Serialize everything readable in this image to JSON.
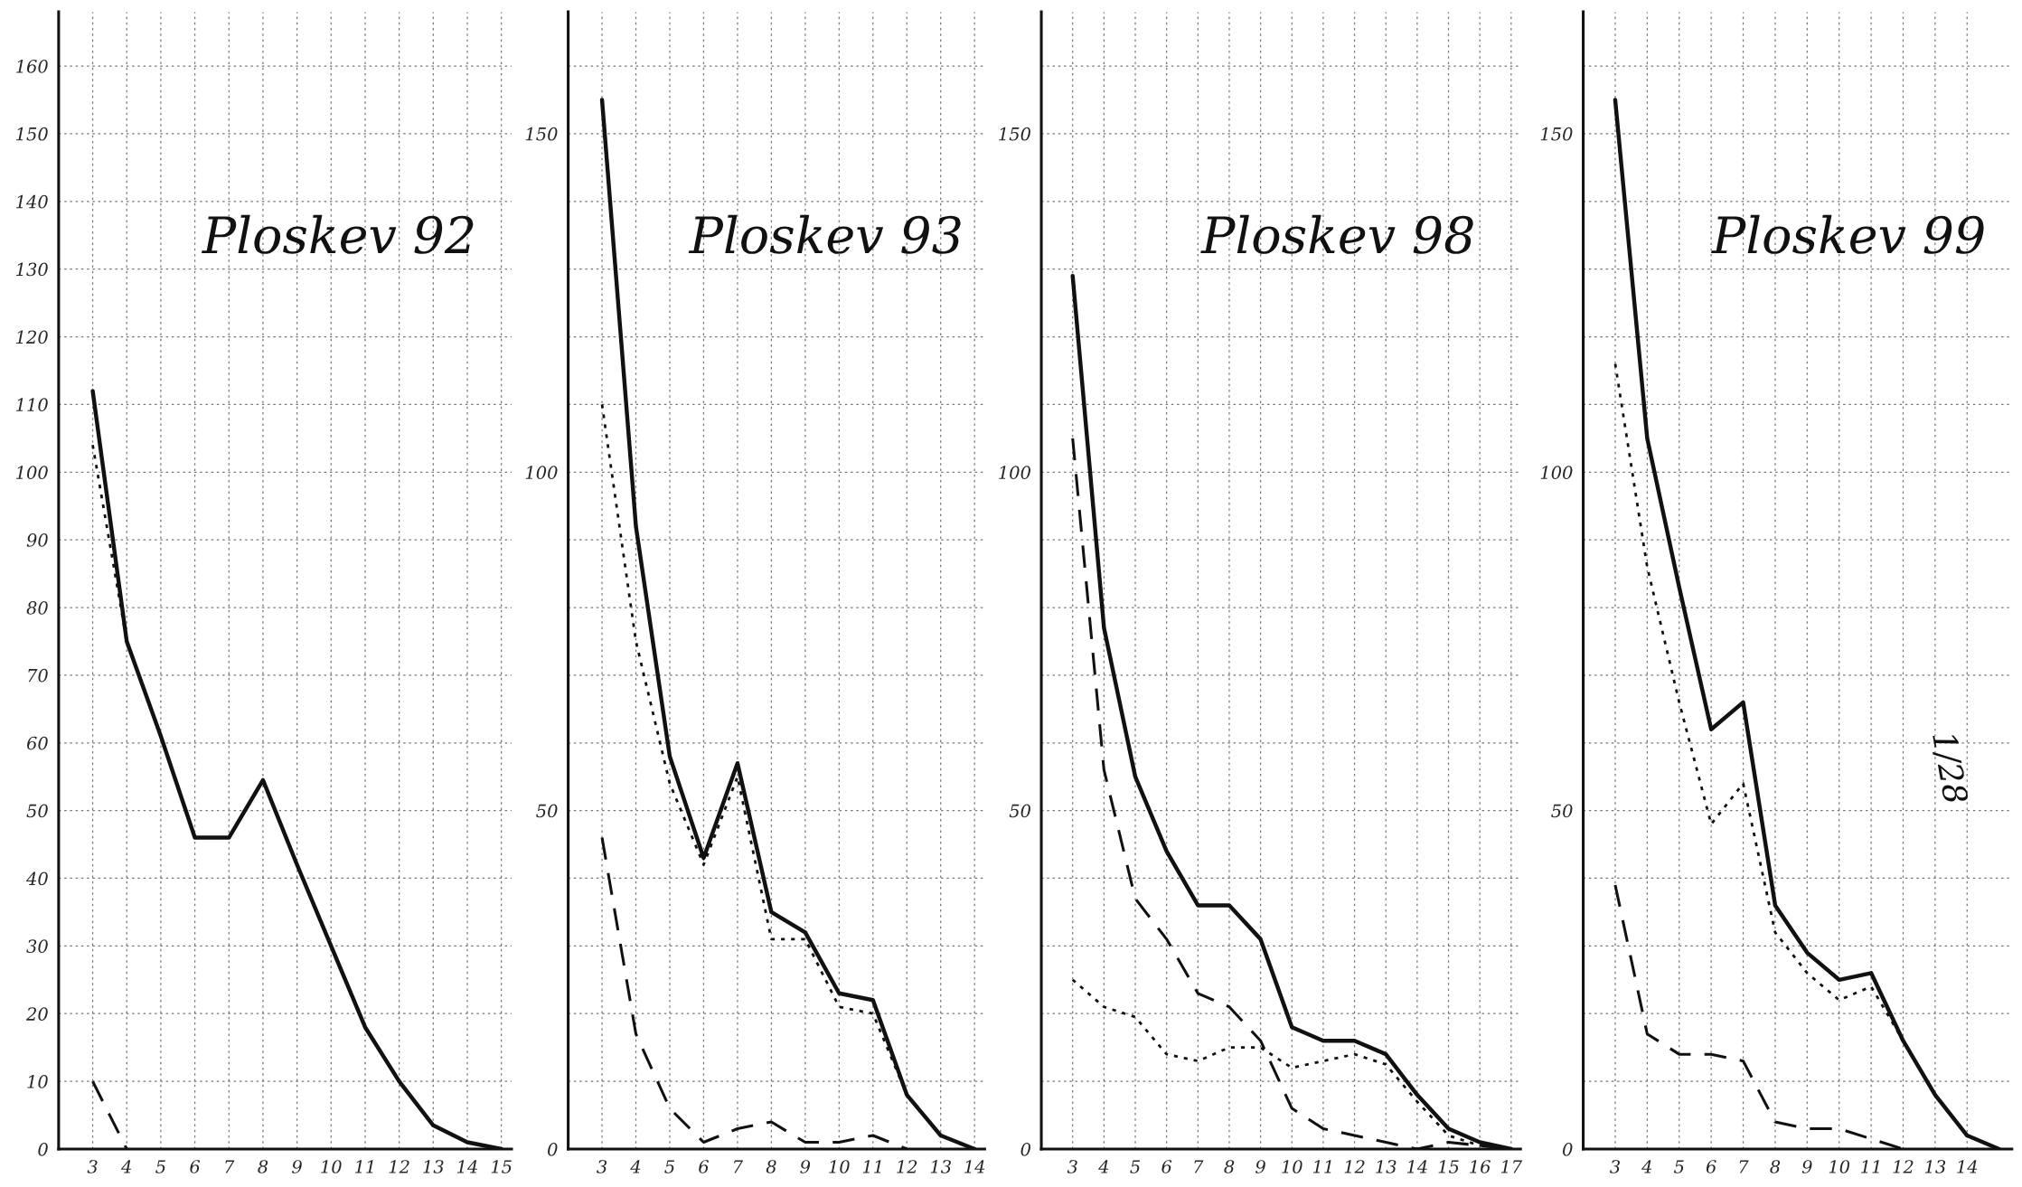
{
  "chart_data": [
    {
      "type": "line",
      "title": "Ploskev 92",
      "xlim": [
        2,
        15.3
      ],
      "xticks": [
        3,
        4,
        5,
        6,
        7,
        8,
        9,
        10,
        11,
        12,
        13,
        14,
        15
      ],
      "ylim": [
        0,
        168
      ],
      "yticks": [
        0,
        10,
        20,
        30,
        40,
        50,
        60,
        70,
        80,
        90,
        100,
        110,
        120,
        130,
        140,
        150,
        160
      ],
      "grid": true,
      "series": [
        {
          "color": "#111111",
          "line_style": "solid",
          "x": [
            3,
            4,
            5,
            6,
            7,
            8,
            9,
            10,
            11,
            12,
            13,
            14,
            15
          ],
          "values": [
            112,
            75,
            61,
            46,
            46,
            54.5,
            42,
            30,
            18,
            10,
            3.5,
            1,
            0
          ]
        },
        {
          "color": "#111111",
          "line_style": "dotted",
          "x": [
            3,
            4
          ],
          "values": [
            104,
            75
          ]
        },
        {
          "color": "#111111",
          "line_style": "dashed",
          "x": [
            3,
            4
          ],
          "values": [
            10,
            0
          ]
        }
      ]
    },
    {
      "type": "line",
      "title": "Ploskev 93",
      "xlim": [
        2,
        14.3
      ],
      "xticks": [
        3,
        4,
        5,
        6,
        7,
        8,
        9,
        10,
        11,
        12,
        13,
        14
      ],
      "ylim": [
        0,
        168
      ],
      "yticks": [
        0,
        {
          "value": 10,
          "label": null
        },
        {
          "value": 20,
          "label": null
        },
        {
          "value": 30,
          "label": null
        },
        {
          "value": 40,
          "label": null
        },
        50,
        {
          "value": 60,
          "label": null
        },
        {
          "value": 70,
          "label": null
        },
        {
          "value": 80,
          "label": null
        },
        {
          "value": 90,
          "label": null
        },
        100,
        {
          "value": 110,
          "label": null
        },
        {
          "value": 120,
          "label": null
        },
        {
          "value": 130,
          "label": null
        },
        {
          "value": 140,
          "label": null
        },
        150,
        {
          "value": 160,
          "label": null
        }
      ],
      "grid": true,
      "series": [
        {
          "color": "#111111",
          "line_style": "solid",
          "x": [
            3,
            4,
            5,
            6,
            7,
            8,
            9,
            10,
            11,
            12,
            13,
            14
          ],
          "values": [
            155,
            92,
            58,
            43,
            57,
            35,
            32,
            23,
            22,
            8,
            2,
            0
          ]
        },
        {
          "color": "#111111",
          "line_style": "dotted",
          "x": [
            3,
            4,
            5,
            6,
            7,
            8,
            9,
            10,
            11,
            12
          ],
          "values": [
            110,
            75,
            54,
            42,
            55,
            31,
            31,
            21,
            20,
            8
          ]
        },
        {
          "color": "#111111",
          "line_style": "dashed",
          "x": [
            3,
            4,
            5,
            6,
            7,
            8,
            9,
            10,
            11,
            12
          ],
          "values": [
            46,
            17,
            6,
            1,
            3,
            4,
            1,
            1,
            2,
            0
          ]
        }
      ]
    },
    {
      "type": "line",
      "title": "Ploskev 98",
      "xlim": [
        2,
        17.3
      ],
      "xticks": [
        3,
        4,
        5,
        6,
        7,
        8,
        9,
        10,
        11,
        12,
        13,
        14,
        15,
        16,
        17
      ],
      "ylim": [
        0,
        168
      ],
      "yticks": [
        0,
        {
          "value": 10,
          "label": null
        },
        {
          "value": 20,
          "label": null
        },
        {
          "value": 30,
          "label": null
        },
        {
          "value": 40,
          "label": null
        },
        50,
        {
          "value": 60,
          "label": null
        },
        {
          "value": 70,
          "label": null
        },
        {
          "value": 80,
          "label": null
        },
        {
          "value": 90,
          "label": null
        },
        100,
        {
          "value": 110,
          "label": null
        },
        {
          "value": 120,
          "label": null
        },
        {
          "value": 130,
          "label": null
        },
        {
          "value": 140,
          "label": null
        },
        150,
        {
          "value": 160,
          "label": null
        }
      ],
      "grid": true,
      "series": [
        {
          "color": "#111111",
          "line_style": "solid",
          "x": [
            3,
            4,
            5,
            6,
            7,
            8,
            9,
            10,
            11,
            12,
            13,
            14,
            15,
            16,
            17
          ],
          "values": [
            129,
            77,
            55,
            44,
            36,
            36,
            31,
            18,
            16,
            16,
            14,
            8,
            3,
            1,
            0
          ]
        },
        {
          "color": "#111111",
          "line_style": "dashed",
          "x": [
            3,
            4,
            5,
            6,
            7,
            8,
            9,
            10,
            11,
            12,
            13,
            14,
            15,
            16,
            17
          ],
          "values": [
            105,
            56,
            37,
            31,
            23,
            21,
            16,
            6,
            3,
            2,
            1,
            0,
            1,
            0.5,
            0
          ]
        },
        {
          "color": "#111111",
          "line_style": "dotted",
          "x": [
            3,
            4,
            5,
            6,
            7,
            8,
            9,
            10,
            11,
            12,
            13,
            14,
            15,
            16,
            17
          ],
          "values": [
            25,
            21,
            19.5,
            14,
            13,
            15,
            15,
            12,
            13,
            14,
            12.5,
            7,
            2,
            0.5,
            0
          ]
        }
      ]
    },
    {
      "type": "line",
      "title": "Ploskev 99",
      "xlim": [
        2,
        15.4
      ],
      "xticks": [
        3,
        4,
        5,
        6,
        7,
        8,
        9,
        10,
        11,
        12,
        13,
        14
      ],
      "ylim": [
        0,
        168
      ],
      "yticks": [
        0,
        {
          "value": 10,
          "label": null
        },
        {
          "value": 20,
          "label": null
        },
        {
          "value": 30,
          "label": null
        },
        {
          "value": 40,
          "label": null
        },
        50,
        {
          "value": 60,
          "label": null
        },
        {
          "value": 70,
          "label": null
        },
        {
          "value": 80,
          "label": null
        },
        {
          "value": 90,
          "label": null
        },
        100,
        {
          "value": 110,
          "label": null
        },
        {
          "value": 120,
          "label": null
        },
        {
          "value": 130,
          "label": null
        },
        {
          "value": 140,
          "label": null
        },
        150,
        {
          "value": 160,
          "label": null
        }
      ],
      "grid": true,
      "annotations": [
        "1/28"
      ],
      "series": [
        {
          "color": "#111111",
          "line_style": "solid",
          "x": [
            3,
            4,
            5,
            6,
            7,
            8,
            9,
            10,
            11,
            12,
            13,
            14,
            15
          ],
          "values": [
            155,
            105,
            83,
            62,
            66,
            36,
            29,
            25,
            26,
            16,
            8,
            2,
            0
          ]
        },
        {
          "color": "#111111",
          "line_style": "dotted",
          "x": [
            3,
            4,
            5,
            6,
            7,
            8,
            9,
            10,
            11,
            12
          ],
          "values": [
            116,
            86,
            66,
            48,
            54,
            32,
            26,
            22,
            24,
            16
          ]
        },
        {
          "color": "#111111",
          "line_style": "dashed",
          "x": [
            3,
            4,
            5,
            6,
            7,
            8,
            9,
            10,
            11,
            12
          ],
          "values": [
            39,
            17,
            14,
            14,
            13,
            4,
            3,
            3,
            1.5,
            0
          ]
        }
      ]
    }
  ]
}
